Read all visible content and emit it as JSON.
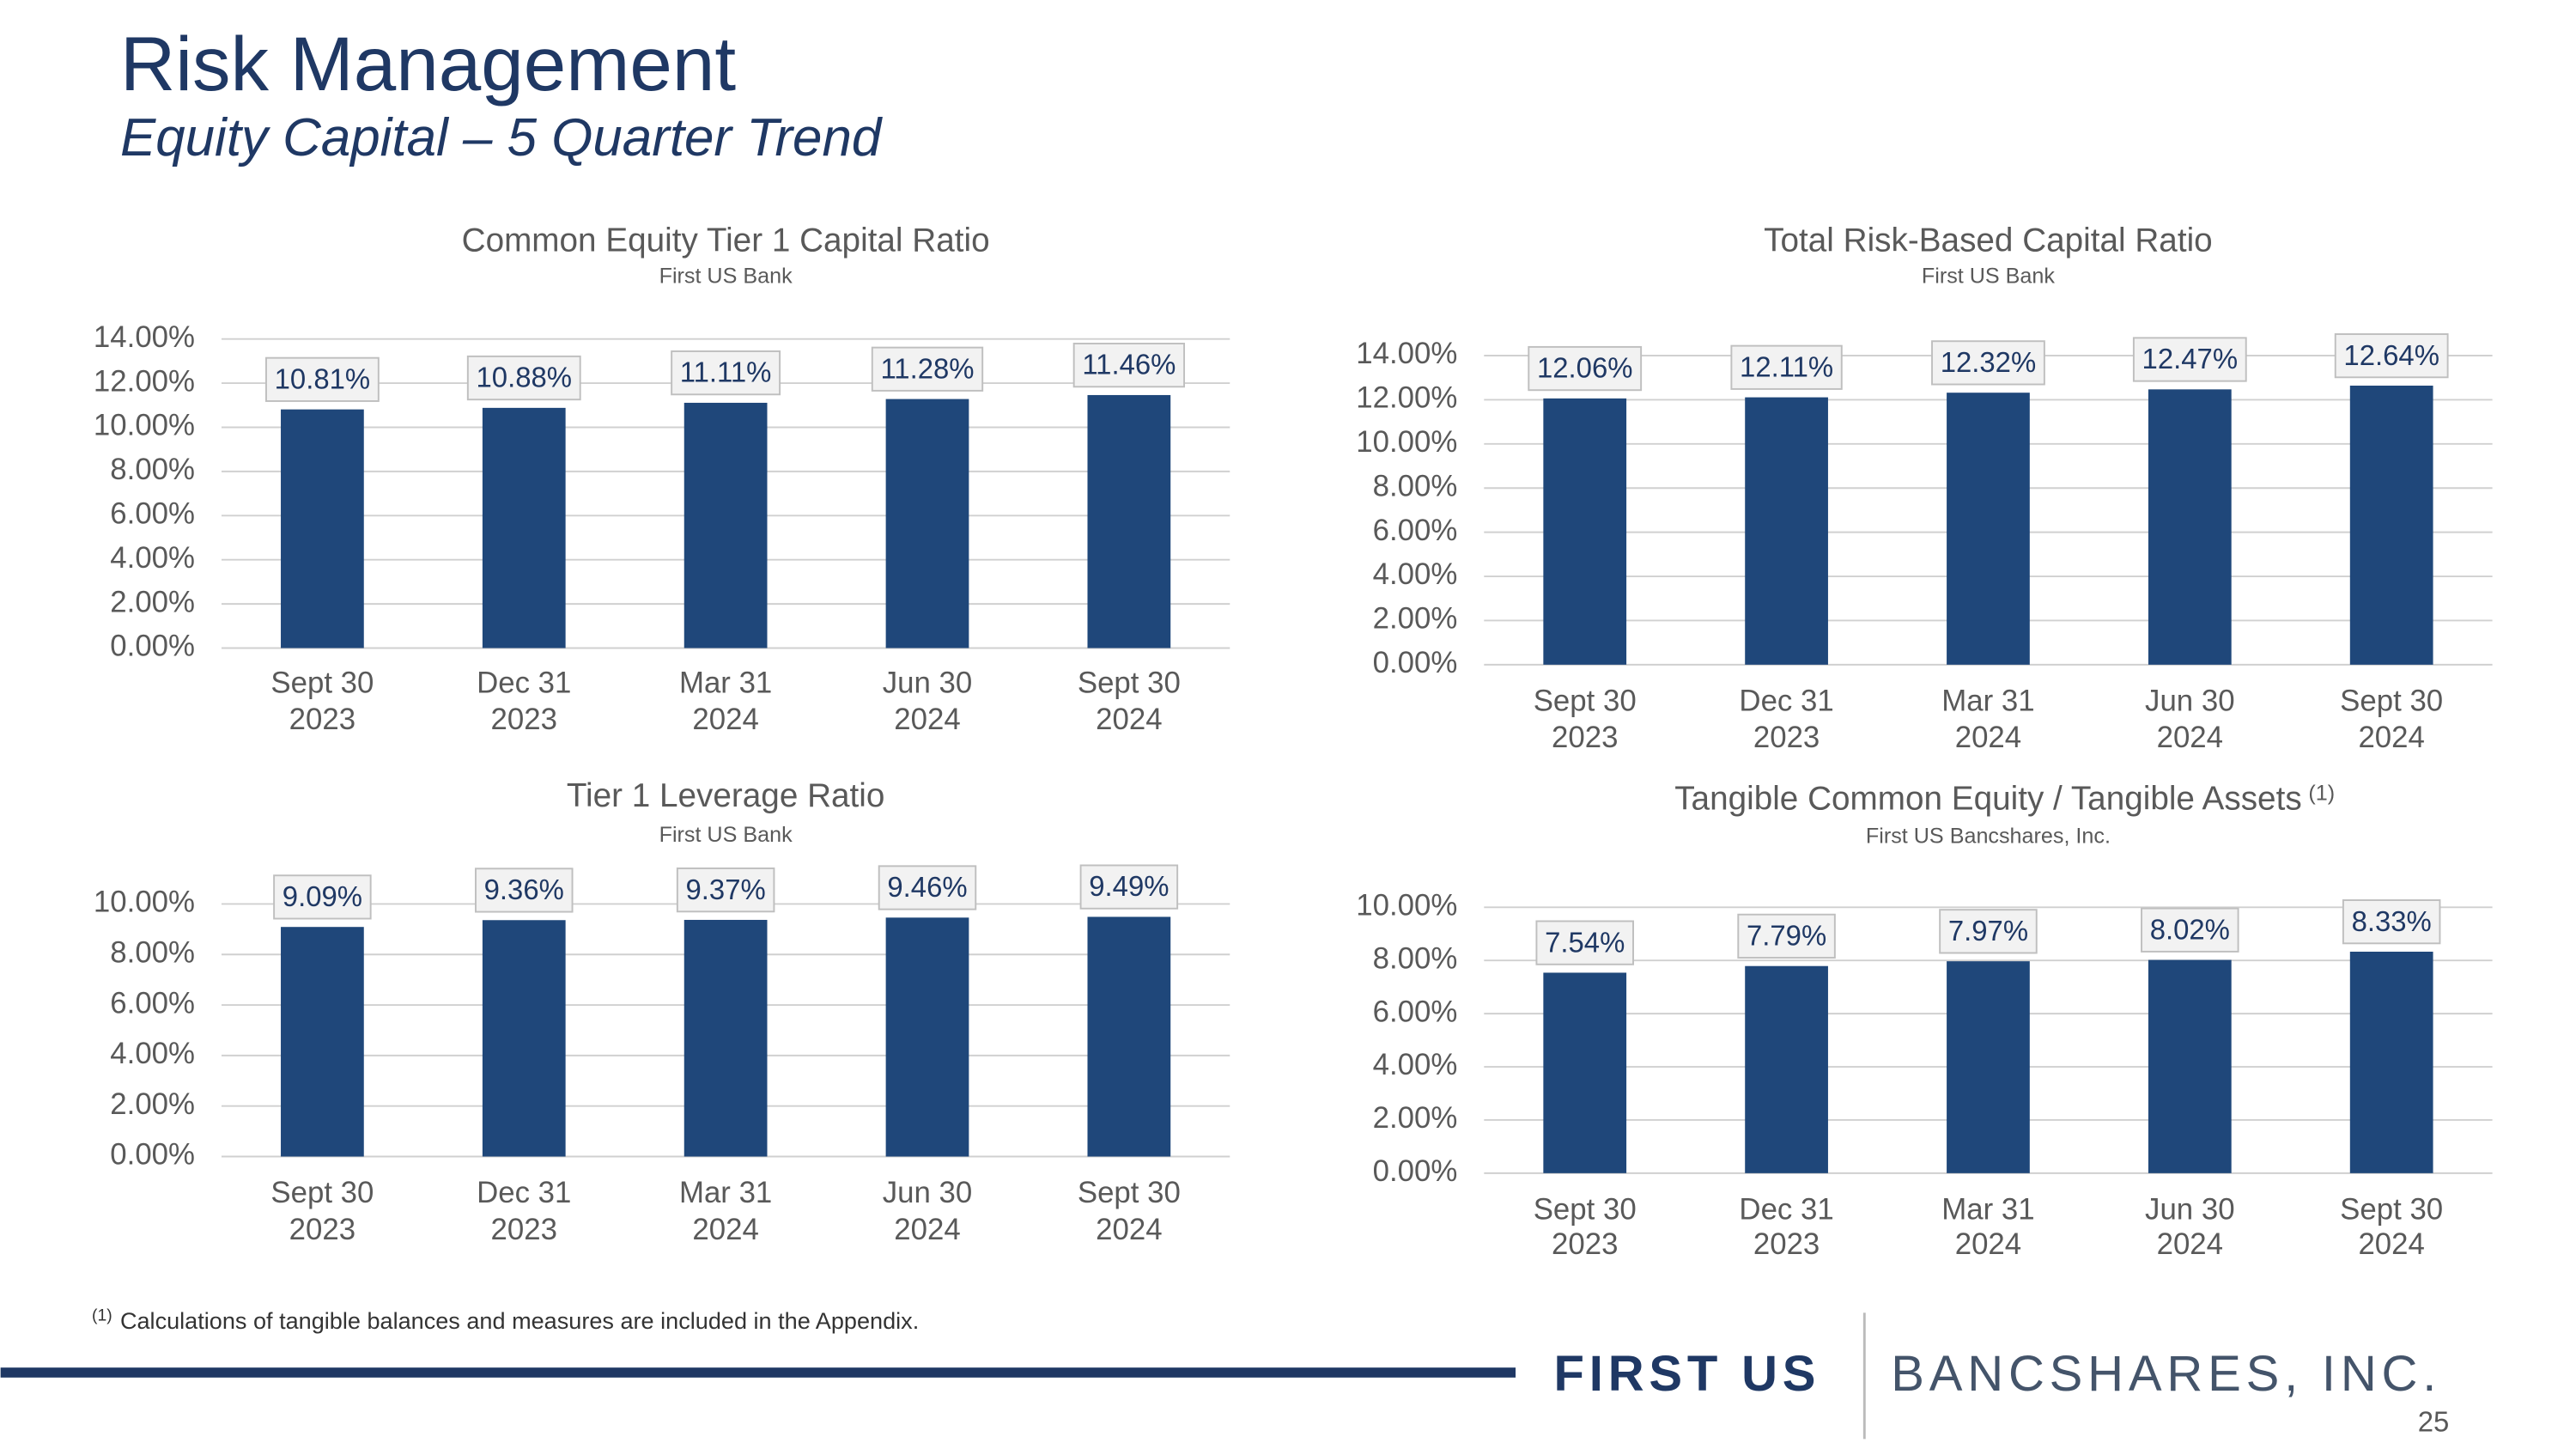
{
  "header": {
    "title": "Risk Management",
    "subtitle": "Equity Capital – 5 Quarter Trend"
  },
  "chart_data": [
    {
      "type": "bar",
      "title": "Common Equity Tier 1 Capital Ratio",
      "subtitle": "First US Bank",
      "categories": [
        [
          "Sept 30",
          "2023"
        ],
        [
          "Dec 31",
          "2023"
        ],
        [
          "Mar 31",
          "2024"
        ],
        [
          "Jun 30",
          "2024"
        ],
        [
          "Sept 30",
          "2024"
        ]
      ],
      "values": [
        10.81,
        10.88,
        11.11,
        11.28,
        11.46
      ],
      "value_labels": [
        "10.81%",
        "10.88%",
        "11.11%",
        "11.28%",
        "11.46%"
      ],
      "color": "#1f477a",
      "grid": true,
      "ylim": [
        0,
        14
      ],
      "yticks": [
        {
          "value": 0,
          "label": "0.00%"
        },
        {
          "value": 2,
          "label": "2.00%"
        },
        {
          "value": 4,
          "label": "4.00%"
        },
        {
          "value": 6,
          "label": "6.00%"
        },
        {
          "value": 8,
          "label": "8.00%"
        },
        {
          "value": 10,
          "label": "10.00%"
        },
        {
          "value": 12,
          "label": "12.00%"
        },
        {
          "value": 14,
          "label": "14.00%"
        }
      ]
    },
    {
      "type": "bar",
      "title": "Total Risk-Based Capital Ratio",
      "subtitle": "First US Bank",
      "categories": [
        [
          "Sept 30",
          "2023"
        ],
        [
          "Dec 31",
          "2023"
        ],
        [
          "Mar 31",
          "2024"
        ],
        [
          "Jun 30",
          "2024"
        ],
        [
          "Sept 30",
          "2024"
        ]
      ],
      "values": [
        12.06,
        12.11,
        12.32,
        12.47,
        12.64
      ],
      "value_labels": [
        "12.06%",
        "12.11%",
        "12.32%",
        "12.47%",
        "12.64%"
      ],
      "color": "#1f477a",
      "grid": true,
      "ylim": [
        0,
        14
      ],
      "yticks": [
        {
          "value": 0,
          "label": "0.00%"
        },
        {
          "value": 2,
          "label": "2.00%"
        },
        {
          "value": 4,
          "label": "4.00%"
        },
        {
          "value": 6,
          "label": "6.00%"
        },
        {
          "value": 8,
          "label": "8.00%"
        },
        {
          "value": 10,
          "label": "10.00%"
        },
        {
          "value": 12,
          "label": "12.00%"
        },
        {
          "value": 14,
          "label": "14.00%"
        }
      ]
    },
    {
      "type": "bar",
      "title": "Tier 1 Leverage Ratio",
      "subtitle": "First US Bank",
      "categories": [
        [
          "Sept 30",
          "2023"
        ],
        [
          "Dec 31",
          "2023"
        ],
        [
          "Mar 31",
          "2024"
        ],
        [
          "Jun 30",
          "2024"
        ],
        [
          "Sept 30",
          "2024"
        ]
      ],
      "values": [
        9.09,
        9.36,
        9.37,
        9.46,
        9.49
      ],
      "value_labels": [
        "9.09%",
        "9.36%",
        "9.37%",
        "9.46%",
        "9.49%"
      ],
      "color": "#1f477a",
      "grid": true,
      "ylim": [
        0,
        10
      ],
      "yticks": [
        {
          "value": 0,
          "label": "0.00%"
        },
        {
          "value": 2,
          "label": "2.00%"
        },
        {
          "value": 4,
          "label": "4.00%"
        },
        {
          "value": 6,
          "label": "6.00%"
        },
        {
          "value": 8,
          "label": "8.00%"
        },
        {
          "value": 10,
          "label": "10.00%"
        }
      ]
    },
    {
      "type": "bar",
      "title": "Tangible Common Equity / Tangible Assets",
      "title_note": "(1)",
      "subtitle": "First US Bancshares, Inc.",
      "categories": [
        [
          "Sept 30",
          "2023"
        ],
        [
          "Dec 31",
          "2023"
        ],
        [
          "Mar 31",
          "2024"
        ],
        [
          "Jun 30",
          "2024"
        ],
        [
          "Sept 30",
          "2024"
        ]
      ],
      "values": [
        7.54,
        7.79,
        7.97,
        8.02,
        8.33
      ],
      "value_labels": [
        "7.54%",
        "7.79%",
        "7.97%",
        "8.02%",
        "8.33%"
      ],
      "color": "#1f477a",
      "grid": true,
      "ylim": [
        0,
        10
      ],
      "yticks": [
        {
          "value": 0,
          "label": "0.00%"
        },
        {
          "value": 2,
          "label": "2.00%"
        },
        {
          "value": 4,
          "label": "4.00%"
        },
        {
          "value": 6,
          "label": "6.00%"
        },
        {
          "value": 8,
          "label": "8.00%"
        },
        {
          "value": 10,
          "label": "10.00%"
        }
      ]
    }
  ],
  "footnote": {
    "marker": "(1)",
    "text": "Calculations of tangible balances and measures are included in the Appendix."
  },
  "logo": {
    "primary": "FIRST US",
    "secondary": "BANCSHARES, INC."
  },
  "page_number": "25"
}
